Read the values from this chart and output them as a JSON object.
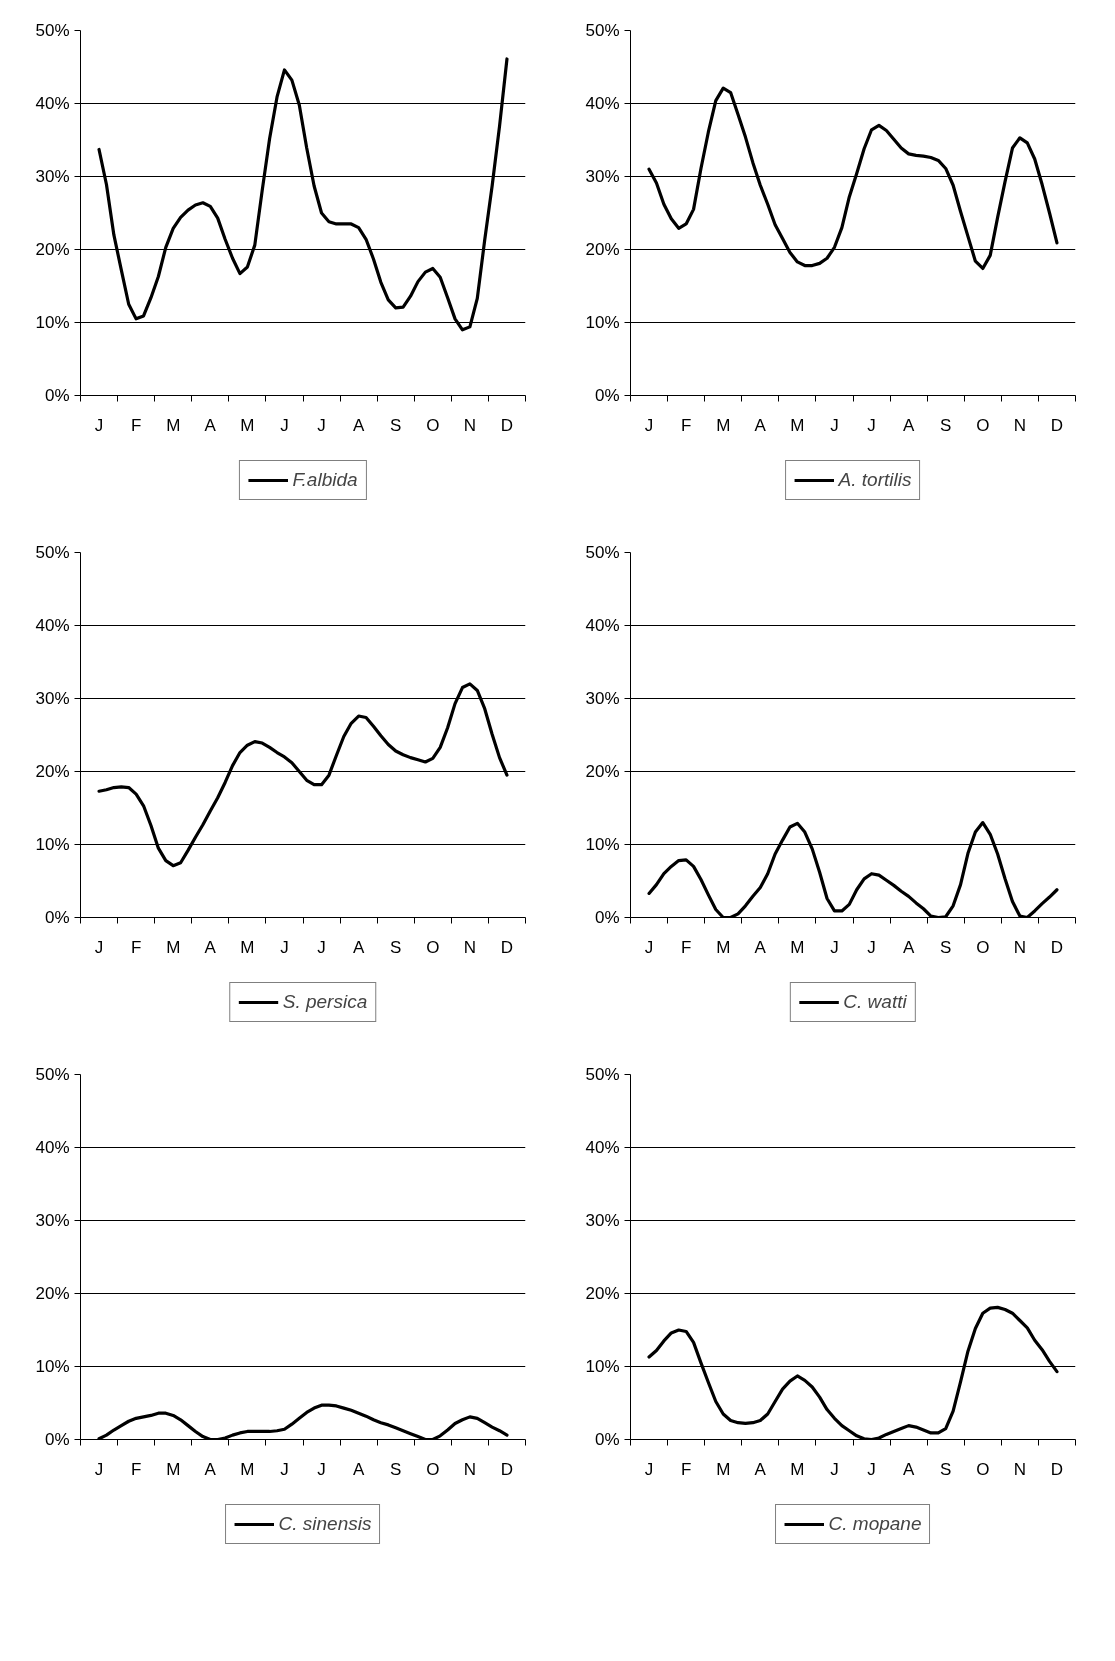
{
  "chart_data": [
    {
      "type": "line",
      "ylim": [
        0,
        50
      ],
      "grid": "y",
      "legend": "bottom",
      "categories": [
        null,
        null,
        "J",
        null,
        null,
        null,
        null,
        "F",
        null,
        null,
        null,
        null,
        "M",
        null,
        null,
        null,
        null,
        "A",
        null,
        null,
        null,
        null,
        "M",
        null,
        null,
        null,
        null,
        "J",
        null,
        null,
        null,
        null,
        "J",
        null,
        null,
        null,
        null,
        "A",
        null,
        null,
        null,
        null,
        "S",
        null,
        null,
        null,
        null,
        "O",
        null,
        null,
        null,
        null,
        "N",
        null,
        null,
        null,
        null,
        "D",
        null,
        null
      ],
      "yticks": [
        {
          "value": 0,
          "label": "0%"
        },
        {
          "value": 10,
          "label": "10%"
        },
        {
          "value": 20,
          "label": "20%"
        },
        {
          "value": 30,
          "label": "30%"
        },
        {
          "value": 40,
          "label": "40%"
        },
        {
          "value": 50,
          "label": "50%"
        }
      ],
      "series": [
        {
          "name": "F.albida",
          "color": "#000000",
          "values": [
            null,
            null,
            33.7,
            28.9,
            22.0,
            17.2,
            12.5,
            10.5,
            10.9,
            13.4,
            16.3,
            20.3,
            22.9,
            24.4,
            25.4,
            26.1,
            26.4,
            25.9,
            24.3,
            21.4,
            18.8,
            16.7,
            17.6,
            20.6,
            28.1,
            35.2,
            40.9,
            44.6,
            43.2,
            39.8,
            33.9,
            28.7,
            25.0,
            23.8,
            23.5,
            23.5,
            23.5,
            23.0,
            21.4,
            18.7,
            15.5,
            13.1,
            12.0,
            12.1,
            13.6,
            15.6,
            16.9,
            17.4,
            16.2,
            13.4,
            10.5,
            9.0,
            9.4,
            13.3,
            21.3,
            28.7,
            36.9,
            46.1,
            null,
            null
          ]
        }
      ]
    },
    {
      "type": "line",
      "ylim": [
        0,
        50
      ],
      "grid": "y",
      "legend": "bottom",
      "categories": [
        null,
        null,
        "J",
        null,
        null,
        null,
        null,
        "F",
        null,
        null,
        null,
        null,
        "M",
        null,
        null,
        null,
        null,
        "A",
        null,
        null,
        null,
        null,
        "M",
        null,
        null,
        null,
        null,
        "J",
        null,
        null,
        null,
        null,
        "J",
        null,
        null,
        null,
        null,
        "A",
        null,
        null,
        null,
        null,
        "S",
        null,
        null,
        null,
        null,
        "O",
        null,
        null,
        null,
        null,
        "N",
        null,
        null,
        null,
        null,
        "D",
        null,
        null
      ],
      "yticks": [
        {
          "value": 0,
          "label": "0%"
        },
        {
          "value": 10,
          "label": "10%"
        },
        {
          "value": 20,
          "label": "20%"
        },
        {
          "value": 30,
          "label": "30%"
        },
        {
          "value": 40,
          "label": "40%"
        },
        {
          "value": 50,
          "label": "50%"
        }
      ],
      "series": [
        {
          "name": "A. tortilis",
          "color": "#000000",
          "values": [
            null,
            null,
            31.0,
            29.1,
            26.2,
            24.2,
            22.9,
            23.5,
            25.5,
            31.1,
            36.1,
            40.4,
            42.1,
            41.5,
            38.5,
            35.4,
            31.9,
            28.8,
            26.2,
            23.4,
            21.5,
            19.6,
            18.3,
            17.8,
            17.8,
            18.1,
            18.8,
            20.3,
            23.0,
            27.2,
            30.4,
            33.8,
            36.4,
            37.0,
            36.3,
            35.1,
            33.9,
            33.1,
            32.9,
            32.8,
            32.6,
            32.2,
            31.1,
            28.8,
            25.2,
            21.8,
            18.4,
            17.4,
            19.2,
            24.4,
            29.3,
            33.9,
            35.3,
            34.6,
            32.4,
            28.9,
            25.0,
            20.9,
            null,
            null
          ]
        }
      ]
    },
    {
      "type": "line",
      "ylim": [
        0,
        50
      ],
      "grid": "y",
      "legend": "bottom",
      "categories": [
        null,
        null,
        "J",
        null,
        null,
        null,
        null,
        "F",
        null,
        null,
        null,
        null,
        "M",
        null,
        null,
        null,
        null,
        "A",
        null,
        null,
        null,
        null,
        "M",
        null,
        null,
        null,
        null,
        "J",
        null,
        null,
        null,
        null,
        "J",
        null,
        null,
        null,
        null,
        "A",
        null,
        null,
        null,
        null,
        "S",
        null,
        null,
        null,
        null,
        "O",
        null,
        null,
        null,
        null,
        "N",
        null,
        null,
        null,
        null,
        "D",
        null,
        null
      ],
      "yticks": [
        {
          "value": 0,
          "label": "0%"
        },
        {
          "value": 10,
          "label": "10%"
        },
        {
          "value": 20,
          "label": "20%"
        },
        {
          "value": 30,
          "label": "30%"
        },
        {
          "value": 40,
          "label": "40%"
        },
        {
          "value": 50,
          "label": "50%"
        }
      ],
      "series": [
        {
          "name": "S. persica",
          "color": "#000000",
          "values": [
            null,
            null,
            17.3,
            17.5,
            17.8,
            17.9,
            17.8,
            16.9,
            15.3,
            12.6,
            9.5,
            7.8,
            7.1,
            7.5,
            9.2,
            11.0,
            12.7,
            14.6,
            16.4,
            18.5,
            20.8,
            22.6,
            23.6,
            24.1,
            23.9,
            23.3,
            22.6,
            22.0,
            21.2,
            20.0,
            18.8,
            18.2,
            18.2,
            19.5,
            22.2,
            24.8,
            26.6,
            27.6,
            27.4,
            26.2,
            24.9,
            23.7,
            22.8,
            22.3,
            21.9,
            21.6,
            21.3,
            21.8,
            23.3,
            26.0,
            29.3,
            31.5,
            32.0,
            31.1,
            28.6,
            25.1,
            21.9,
            19.5,
            null,
            null
          ]
        }
      ]
    },
    {
      "type": "line",
      "ylim": [
        0,
        50
      ],
      "grid": "y",
      "legend": "bottom",
      "categories": [
        null,
        null,
        "J",
        null,
        null,
        null,
        null,
        "F",
        null,
        null,
        null,
        null,
        "M",
        null,
        null,
        null,
        null,
        "A",
        null,
        null,
        null,
        null,
        "M",
        null,
        null,
        null,
        null,
        "J",
        null,
        null,
        null,
        null,
        "J",
        null,
        null,
        null,
        null,
        "A",
        null,
        null,
        null,
        null,
        "S",
        null,
        null,
        null,
        null,
        "O",
        null,
        null,
        null,
        null,
        "N",
        null,
        null,
        null,
        null,
        "D",
        null,
        null
      ],
      "yticks": [
        {
          "value": 0,
          "label": "0%"
        },
        {
          "value": 10,
          "label": "10%"
        },
        {
          "value": 20,
          "label": "20%"
        },
        {
          "value": 30,
          "label": "30%"
        },
        {
          "value": 40,
          "label": "40%"
        },
        {
          "value": 50,
          "label": "50%"
        }
      ],
      "series": [
        {
          "name": "C. watti",
          "color": "#000000",
          "values": [
            null,
            null,
            3.3,
            4.5,
            6.0,
            7.0,
            7.8,
            7.9,
            7.0,
            5.2,
            3.1,
            1.1,
            0,
            0,
            0.5,
            1.6,
            2.9,
            4.1,
            6.0,
            8.7,
            10.6,
            12.4,
            12.9,
            11.7,
            9.4,
            6.2,
            2.6,
            0.9,
            0.9,
            1.8,
            3.8,
            5.3,
            6.0,
            5.8,
            5.1,
            4.4,
            3.6,
            2.9,
            2.0,
            1.2,
            0.2,
            0,
            0.1,
            1.6,
            4.5,
            8.8,
            11.7,
            13.0,
            11.4,
            8.7,
            5.3,
            2.2,
            0.2,
            0,
            0.9,
            1.9,
            2.8,
            3.8,
            null,
            null
          ]
        }
      ]
    },
    {
      "type": "line",
      "ylim": [
        0,
        50
      ],
      "grid": "y",
      "legend": "bottom",
      "categories": [
        null,
        null,
        "J",
        null,
        null,
        null,
        null,
        "F",
        null,
        null,
        null,
        null,
        "M",
        null,
        null,
        null,
        null,
        "A",
        null,
        null,
        null,
        null,
        "M",
        null,
        null,
        null,
        null,
        "J",
        null,
        null,
        null,
        null,
        "J",
        null,
        null,
        null,
        null,
        "A",
        null,
        null,
        null,
        null,
        "S",
        null,
        null,
        null,
        null,
        "O",
        null,
        null,
        null,
        null,
        "N",
        null,
        null,
        null,
        null,
        "D",
        null,
        null
      ],
      "yticks": [
        {
          "value": 0,
          "label": "0%"
        },
        {
          "value": 10,
          "label": "10%"
        },
        {
          "value": 20,
          "label": "20%"
        },
        {
          "value": 30,
          "label": "30%"
        },
        {
          "value": 40,
          "label": "40%"
        },
        {
          "value": 50,
          "label": "50%"
        }
      ],
      "series": [
        {
          "name": "C. sinensis",
          "color": "#000000",
          "values": [
            null,
            null,
            0.1,
            0.6,
            1.3,
            1.9,
            2.5,
            2.9,
            3.1,
            3.3,
            3.6,
            3.6,
            3.3,
            2.7,
            1.9,
            1.1,
            0.4,
            0,
            0,
            0.2,
            0.6,
            0.9,
            1.1,
            1.1,
            1.1,
            1.1,
            1.2,
            1.4,
            2.1,
            2.9,
            3.7,
            4.3,
            4.7,
            4.7,
            4.6,
            4.3,
            4.0,
            3.6,
            3.2,
            2.7,
            2.3,
            2.0,
            1.6,
            1.2,
            0.8,
            0.4,
            0,
            0,
            0.5,
            1.3,
            2.2,
            2.7,
            3.1,
            2.9,
            2.3,
            1.7,
            1.2,
            0.6,
            null,
            null
          ]
        }
      ]
    },
    {
      "type": "line",
      "ylim": [
        0,
        50
      ],
      "grid": "y",
      "legend": "bottom",
      "categories": [
        null,
        null,
        "J",
        null,
        null,
        null,
        null,
        "F",
        null,
        null,
        null,
        null,
        "M",
        null,
        null,
        null,
        null,
        "A",
        null,
        null,
        null,
        null,
        "M",
        null,
        null,
        null,
        null,
        "J",
        null,
        null,
        null,
        null,
        "J",
        null,
        null,
        null,
        null,
        "A",
        null,
        null,
        null,
        null,
        "S",
        null,
        null,
        null,
        null,
        "O",
        null,
        null,
        null,
        null,
        "N",
        null,
        null,
        null,
        null,
        "D",
        null,
        null
      ],
      "yticks": [
        {
          "value": 0,
          "label": "0%"
        },
        {
          "value": 10,
          "label": "10%"
        },
        {
          "value": 20,
          "label": "20%"
        },
        {
          "value": 30,
          "label": "30%"
        },
        {
          "value": 40,
          "label": "40%"
        },
        {
          "value": 50,
          "label": "50%"
        }
      ],
      "series": [
        {
          "name": "C. mopane",
          "color": "#000000",
          "values": [
            null,
            null,
            11.3,
            12.2,
            13.5,
            14.6,
            15.0,
            14.8,
            13.3,
            10.5,
            7.8,
            5.2,
            3.5,
            2.6,
            2.3,
            2.2,
            2.3,
            2.6,
            3.5,
            5.2,
            6.9,
            8.0,
            8.7,
            8.1,
            7.2,
            5.8,
            4.1,
            2.9,
            1.9,
            1.2,
            0.5,
            0.1,
            0,
            0.2,
            0.7,
            1.1,
            1.5,
            1.9,
            1.7,
            1.3,
            0.9,
            0.9,
            1.5,
            3.9,
            7.9,
            12.1,
            15.2,
            17.3,
            18.0,
            18.1,
            17.8,
            17.3,
            16.3,
            15.3,
            13.6,
            12.3,
            10.7,
            9.3,
            null,
            null
          ]
        }
      ]
    }
  ]
}
